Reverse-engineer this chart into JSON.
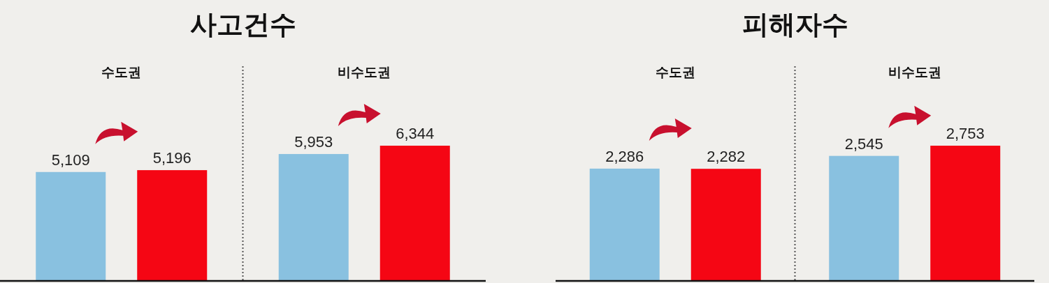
{
  "chart_data": [
    {
      "type": "bar",
      "title": "사고건수",
      "categories": [
        "수도권",
        "비수도권"
      ],
      "series": [
        {
          "color": "#89c1e0",
          "values": [
            5109,
            5953
          ],
          "value_labels": [
            "5,109",
            "5,953"
          ]
        },
        {
          "color": "#f50614",
          "values": [
            5196,
            6344
          ],
          "value_labels": [
            "5,196",
            "6,344"
          ]
        }
      ]
    },
    {
      "type": "bar",
      "title": "피해자수",
      "categories": [
        "수도권",
        "비수도권"
      ],
      "series": [
        {
          "color": "#89c1e0",
          "values": [
            2286,
            2545
          ],
          "value_labels": [
            "2,286",
            "2,545"
          ]
        },
        {
          "color": "#f50614",
          "values": [
            2282,
            2753
          ],
          "value_labels": [
            "2,282",
            "2,753"
          ]
        }
      ]
    }
  ]
}
